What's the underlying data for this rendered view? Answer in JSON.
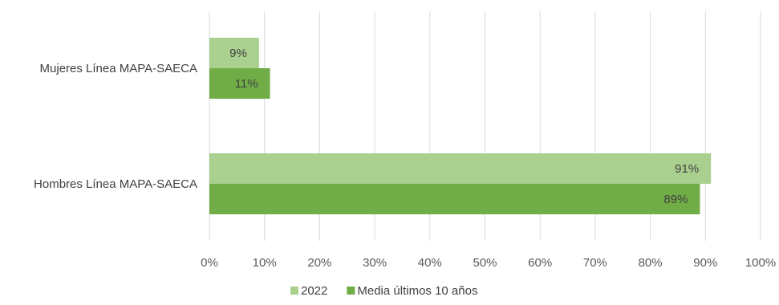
{
  "chart_data": {
    "type": "bar",
    "orientation": "horizontal",
    "categories": [
      "Mujeres Línea MAPA-SAECA",
      "Hombres Línea MAPA-SAECA"
    ],
    "series": [
      {
        "name": "2022",
        "values": [
          9,
          91
        ],
        "labels": [
          "9%",
          "91%"
        ],
        "color": "#a9d08e"
      },
      {
        "name": "Media últimos 10 años",
        "values": [
          11,
          89
        ],
        "labels": [
          "11%",
          "89%"
        ],
        "color": "#70ad47"
      }
    ],
    "xlim": [
      0,
      100
    ],
    "xticks": [
      "0%",
      "10%",
      "20%",
      "30%",
      "40%",
      "50%",
      "60%",
      "70%",
      "80%",
      "90%",
      "100%"
    ],
    "grid": true,
    "legend_position": "bottom",
    "title": "",
    "xlabel": "",
    "ylabel": ""
  }
}
